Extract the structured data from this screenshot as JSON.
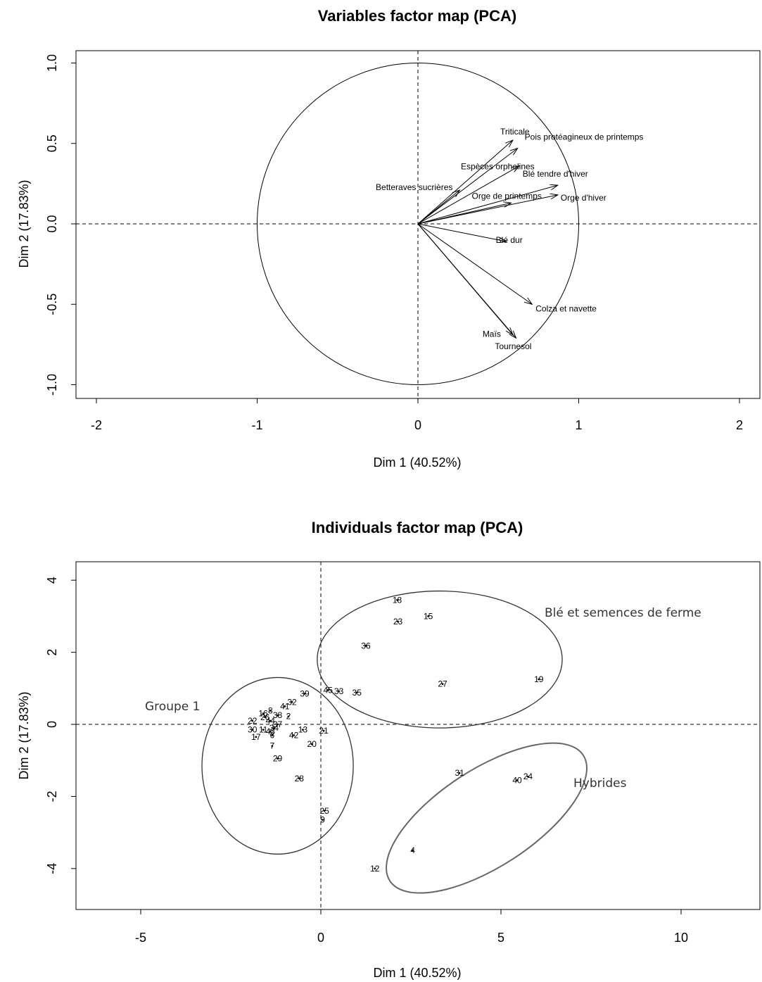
{
  "chart_data": [
    {
      "type": "scatter",
      "title": "Variables factor map (PCA)",
      "xlabel": "Dim 1 (40.52%)",
      "ylabel": "Dim 2 (17.83%)",
      "xlim": [
        -2,
        2
      ],
      "ylim": [
        -1.0,
        1.0
      ],
      "x_ticks": [
        "-2",
        "-1",
        "0",
        "1",
        "2"
      ],
      "y_ticks": [
        "-1.0",
        "-0.5",
        "0.0",
        "0.5",
        "1.0"
      ],
      "unit_circle": true,
      "variables": [
        {
          "label": "Triticale",
          "x": 0.59,
          "y": 0.52
        },
        {
          "label": "Pois protéagineux de printemps",
          "x": 0.62,
          "y": 0.47
        },
        {
          "label": "Espèces orphelines",
          "x": 0.63,
          "y": 0.36
        },
        {
          "label": "Betteraves sucrières",
          "x": 0.26,
          "y": 0.21
        },
        {
          "label": "Blé tendre d'hiver",
          "x": 0.87,
          "y": 0.24
        },
        {
          "label": "Orge de printemps",
          "x": 0.58,
          "y": 0.13
        },
        {
          "label": "Orge d'hiver",
          "x": 0.87,
          "y": 0.18
        },
        {
          "label": "Blé dur",
          "x": 0.55,
          "y": -0.11
        },
        {
          "label": "Colza et navette",
          "x": 0.71,
          "y": -0.5
        },
        {
          "label": "Maïs",
          "x": 0.59,
          "y": -0.69
        },
        {
          "label": "Tournesol",
          "x": 0.61,
          "y": -0.71
        }
      ]
    },
    {
      "type": "scatter",
      "title": "Individuals factor map (PCA)",
      "xlabel": "Dim 1 (40.52%)",
      "ylabel": "Dim 2 (17.83%)",
      "xlim": [
        -6.5,
        12
      ],
      "ylim": [
        -5.1,
        4.5
      ],
      "x_ticks": [
        "-5",
        "0",
        "5",
        "10"
      ],
      "y_ticks": [
        "-4",
        "-2",
        "0",
        "2",
        "4"
      ],
      "points": [
        {
          "label": "18",
          "x": 2.12,
          "y": 3.45
        },
        {
          "label": "15",
          "x": 2.98,
          "y": 3.0
        },
        {
          "label": "23",
          "x": 2.14,
          "y": 2.85
        },
        {
          "label": "36",
          "x": 1.25,
          "y": 2.18
        },
        {
          "label": "27",
          "x": 3.38,
          "y": 1.12
        },
        {
          "label": "19",
          "x": 6.05,
          "y": 1.25
        },
        {
          "label": "45",
          "x": 0.2,
          "y": 0.95
        },
        {
          "label": "33",
          "x": 0.5,
          "y": 0.92
        },
        {
          "label": "35",
          "x": 1.0,
          "y": 0.88
        },
        {
          "label": "39",
          "x": -0.45,
          "y": 0.85
        },
        {
          "label": "32",
          "x": -0.8,
          "y": 0.62
        },
        {
          "label": "41",
          "x": -1.0,
          "y": 0.5
        },
        {
          "label": "8",
          "x": -1.4,
          "y": 0.38
        },
        {
          "label": "16",
          "x": -1.6,
          "y": 0.3
        },
        {
          "label": "38",
          "x": -1.2,
          "y": 0.25
        },
        {
          "label": "26",
          "x": -1.55,
          "y": 0.2
        },
        {
          "label": "2",
          "x": -0.9,
          "y": 0.22
        },
        {
          "label": "22",
          "x": -1.9,
          "y": 0.1
        },
        {
          "label": "44",
          "x": -1.4,
          "y": 0.1
        },
        {
          "label": "37",
          "x": -1.2,
          "y": 0.0
        },
        {
          "label": "34",
          "x": -1.3,
          "y": -0.1
        },
        {
          "label": "30",
          "x": -1.9,
          "y": -0.15
        },
        {
          "label": "11",
          "x": -1.6,
          "y": -0.15
        },
        {
          "label": "43",
          "x": -1.4,
          "y": -0.2
        },
        {
          "label": "6",
          "x": -1.35,
          "y": -0.3
        },
        {
          "label": "17",
          "x": -1.8,
          "y": -0.35
        },
        {
          "label": "42",
          "x": -0.75,
          "y": -0.3
        },
        {
          "label": "13",
          "x": -0.5,
          "y": -0.15
        },
        {
          "label": "21",
          "x": 0.08,
          "y": -0.18
        },
        {
          "label": "7",
          "x": -1.35,
          "y": -0.6
        },
        {
          "label": "20",
          "x": -0.25,
          "y": -0.55
        },
        {
          "label": "29",
          "x": -1.2,
          "y": -0.95
        },
        {
          "label": "28",
          "x": -0.6,
          "y": -1.5
        },
        {
          "label": "25",
          "x": 0.1,
          "y": -2.4
        },
        {
          "label": "9",
          "x": 0.05,
          "y": -2.65
        },
        {
          "label": "31",
          "x": 3.85,
          "y": -1.35
        },
        {
          "label": "40",
          "x": 5.45,
          "y": -1.55
        },
        {
          "label": "24",
          "x": 5.75,
          "y": -1.45
        },
        {
          "label": "4",
          "x": 2.55,
          "y": -3.5
        },
        {
          "label": "12",
          "x": 1.5,
          "y": -4.0
        }
      ],
      "groups": [
        {
          "label": "Blé et semences de ferme",
          "cx": 3.3,
          "cy": 1.8,
          "rx": 3.4,
          "ry": 1.9,
          "angle": 0
        },
        {
          "label": "Groupe 1",
          "cx": -1.2,
          "cy": -1.15,
          "rx": 2.1,
          "ry": 2.45,
          "angle": 0
        },
        {
          "label": "Hybrides",
          "cx": 4.6,
          "cy": -2.6,
          "rx": 3.2,
          "ry": 1.35,
          "angle": -33
        }
      ]
    }
  ]
}
